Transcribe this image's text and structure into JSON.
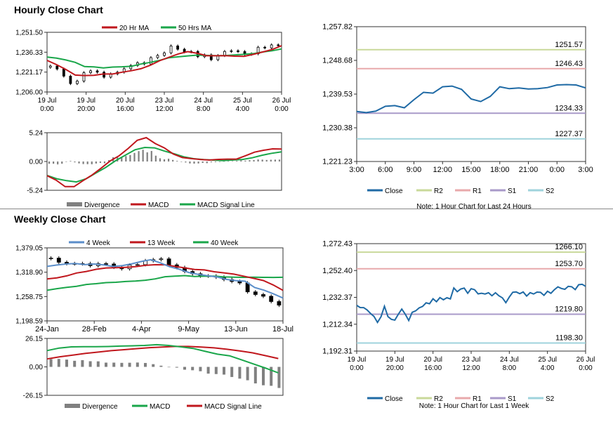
{
  "titles": {
    "hourly": "Hourly Close Chart",
    "weekly": "Weekly Close Chart"
  },
  "colors": {
    "ma_short": "#c0171d",
    "ma_long": "#1aa64a",
    "ma4": "#5b8ec9",
    "close": "#1f6aa5",
    "r2": "#c9d99a",
    "r1": "#e8a9ab",
    "s1": "#a99ac9",
    "s2": "#9fd3dc",
    "divergence": "#808080",
    "candle": "#000000"
  },
  "chart_data": [
    {
      "id": "hourly-price",
      "type": "candlestick",
      "legend": [
        "20 Hr MA",
        "50 Hrs MA"
      ],
      "yticks": [
        "1,251.50",
        "1,236.33",
        "1,221.17",
        "1,206.00"
      ],
      "ylim": [
        1206.0,
        1251.5
      ],
      "xticks": [
        [
          "19 Jul",
          "0:00"
        ],
        [
          "19 Jul",
          "20:00"
        ],
        [
          "20 Jul",
          "16:00"
        ],
        [
          "23 Jul",
          "12:00"
        ],
        [
          "24 Jul",
          "8:00"
        ],
        [
          "25 Jul",
          "4:00"
        ],
        [
          "26 Jul",
          "0:00"
        ]
      ],
      "close": [
        1225.8,
        1223.5,
        1218.1,
        1212.4,
        1214.3,
        1220.7,
        1222.1,
        1221.1,
        1217.3,
        1219.8,
        1221.1,
        1223.7,
        1226.2,
        1228.3,
        1227.3,
        1232.2,
        1233.9,
        1235.8,
        1241.1,
        1238.6,
        1236.6,
        1236.9,
        1232.9,
        1234.3,
        1230.6,
        1233.8,
        1236.9,
        1237.4,
        1236.8,
        1234.7,
        1235.1,
        1240.1,
        1239.6,
        1241.9,
        1241.7
      ],
      "ma20": [
        1230.1,
        1226.9,
        1223.2,
        1218.9,
        1218.5,
        1218.7,
        1219.7,
        1219.7,
        1221.1,
        1222.2,
        1223.7,
        1226.4,
        1229.8,
        1232.5,
        1235.0,
        1236.8,
        1235.5,
        1233.6,
        1233.6,
        1233.7,
        1233.3,
        1233.2,
        1234.7,
        1236.5,
        1238.4,
        1241.3
      ],
      "ma50": [
        1232.6,
        1231.8,
        1230.4,
        1228.6,
        1225.4,
        1225.1,
        1224.3,
        1225.0,
        1225.2,
        1225.6,
        1227.3,
        1228.6,
        1230.1,
        1232.1,
        1232.8,
        1233.5,
        1234.1,
        1233.9,
        1233.6,
        1233.8,
        1234.2,
        1234.7,
        1235.3,
        1236.5,
        1237.4,
        1238.8
      ]
    },
    {
      "id": "hourly-macd",
      "type": "line+bar",
      "legend": [
        "Divergence",
        "MACD",
        "MACD Signal Line"
      ],
      "yticks": [
        "5.24",
        "0.00",
        "-5.24"
      ],
      "ylim": [
        -5.24,
        5.24
      ],
      "macd": [
        -2.58,
        -3.39,
        -4.57,
        -4.57,
        -3.48,
        -2.46,
        -1.2,
        0.1,
        1.06,
        2.38,
        3.86,
        4.34,
        3.26,
        2.48,
        1.37,
        0.71,
        0.52,
        0.37,
        0.27,
        0.38,
        0.43,
        0.44,
        1.05,
        1.7,
        2.04,
        2.3,
        2.28
      ],
      "signal": [
        -2.53,
        -3.15,
        -3.49,
        -3.72,
        -3.15,
        -2.09,
        -1.08,
        0.13,
        1.14,
        2.14,
        2.56,
        2.48,
        1.91,
        1.41,
        0.86,
        0.51,
        0.34,
        0.25,
        0.16,
        0.27,
        0.37,
        0.68,
        1.14,
        1.49,
        1.76
      ],
      "divergence": [
        -0.42,
        -0.41,
        -0.53,
        -0.41,
        0.01,
        0.1,
        -0.15,
        -0.35,
        -0.47,
        -0.49,
        -0.5,
        -0.37,
        -0.25,
        -0.32,
        0.25,
        0.77,
        0.84,
        0.76,
        0.98,
        1.18,
        1.56,
        1.89,
        2.14,
        1.67,
        1.92,
        1.06,
        0.58,
        0.4,
        0.51,
        0.29,
        0.11,
        -0.02,
        -0.17,
        -0.36,
        -0.39,
        -0.36,
        -0.26,
        -0.31,
        -0.14,
        -0.11,
        -0.02,
        0.04,
        0.06,
        0.08,
        0.12,
        0.2,
        0.16,
        0.24,
        0.27,
        0.37,
        0.34,
        0.28,
        0.32,
        0.34,
        0.35
      ]
    },
    {
      "id": "hourly-levels",
      "type": "line",
      "legend": [
        "Close",
        "R2",
        "R1",
        "S1",
        "S2"
      ],
      "yticks": [
        "1,257.82",
        "1,248.68",
        "1,239.53",
        "1,230.38",
        "1,221.23"
      ],
      "ylim": [
        1221.23,
        1257.82
      ],
      "xticks": [
        "3:00",
        "6:00",
        "9:00",
        "12:00",
        "15:00",
        "18:00",
        "21:00",
        "0:00",
        "3:00"
      ],
      "close": [
        1234.8,
        1234.5,
        1234.9,
        1236.2,
        1236.4,
        1235.8,
        1238.0,
        1240.0,
        1239.8,
        1241.5,
        1241.7,
        1240.8,
        1238.2,
        1237.5,
        1238.9,
        1241.5,
        1241.0,
        1241.2,
        1240.9,
        1241.0,
        1241.3,
        1242.0,
        1242.1,
        1242.0,
        1241.2
      ],
      "levels": [
        {
          "name": "R2",
          "value": 1251.57,
          "label": "1251.57"
        },
        {
          "name": "R1",
          "value": 1246.43,
          "label": "1246.43"
        },
        {
          "name": "S1",
          "value": 1234.33,
          "label": "1234.33"
        },
        {
          "name": "S2",
          "value": 1227.37,
          "label": "1227.37"
        }
      ],
      "note": "Note: 1 Hour Chart for Last 24 Hours"
    },
    {
      "id": "weekly-price",
      "type": "candlestick",
      "legend": [
        "4 Week",
        "13 Week",
        "40 Week"
      ],
      "yticks": [
        "1,379.05",
        "1,318.90",
        "1,258.75",
        "1,198.59"
      ],
      "ylim": [
        1198.59,
        1379.05
      ],
      "xticks": [
        "24-Jan",
        "28-Feb",
        "4-Apr",
        "9-May",
        "13-Jun",
        "18-Jul"
      ],
      "close": [
        1353.7,
        1343.5,
        1340.1,
        1339.7,
        1340.3,
        1334.9,
        1340.1,
        1339.2,
        1331.3,
        1327.4,
        1336.4,
        1337.7,
        1347.3,
        1349.9,
        1351.9,
        1337.1,
        1330.4,
        1320.7,
        1315.1,
        1309.6,
        1309.6,
        1306.6,
        1300.9,
        1296.0,
        1292.3,
        1270.3,
        1263.8,
        1259.5,
        1246.4,
        1237.5
      ],
      "ma4": [
        1333.3,
        1336.5,
        1339.1,
        1340.4,
        1337.6,
        1339.1,
        1336.8,
        1333.0,
        1335.4,
        1339.8,
        1345.4,
        1349.8,
        1342.1,
        1332.4,
        1326.3,
        1318.4,
        1313.7,
        1310.4,
        1307.2,
        1301.1,
        1298.2,
        1296.6,
        1281.0,
        1274.4,
        1265.3,
        1255.2
      ],
      "ma13": [
        1302.3,
        1305.0,
        1309.8,
        1316.9,
        1320.8,
        1326.1,
        1329.4,
        1330.1,
        1331.0,
        1332.6,
        1335.9,
        1337.4,
        1337.3,
        1333.2,
        1329.6,
        1325.8,
        1324.5,
        1320.0,
        1317.2,
        1314.1,
        1309.1,
        1303.8,
        1298.3,
        1287.4,
        1274.1
      ],
      "ma40": [
        1274.2,
        1278.2,
        1281.5,
        1284.2,
        1288.7,
        1290.6,
        1293.1,
        1294.0,
        1296.0,
        1297.0,
        1299.0,
        1302.4,
        1307.8,
        1309.2,
        1310.5,
        1308.5,
        1308.9,
        1309.2,
        1307.2,
        1306.7,
        1306.2,
        1306.7,
        1306.2,
        1306.0,
        1306.4
      ]
    },
    {
      "id": "weekly-macd",
      "type": "line+bar",
      "legend": [
        "Divergence",
        "MACD",
        "MACD Signal Line"
      ],
      "yticks": [
        "26.15",
        "0.00",
        "-26.15"
      ],
      "ylim": [
        -26.15,
        26.15
      ],
      "macd": [
        15.0,
        17.3,
        18.4,
        18.6,
        18.5,
        18.7,
        19.1,
        19.4,
        19.7,
        20.4,
        19.7,
        18.4,
        17.0,
        14.3,
        11.7,
        10.2,
        6.4,
        2.5,
        -1.3,
        -5.5
      ],
      "signal": [
        7.3,
        9.3,
        10.8,
        12.4,
        13.6,
        14.9,
        15.8,
        16.8,
        17.7,
        18.3,
        18.8,
        18.8,
        18.2,
        17.5,
        16.2,
        14.7,
        12.9,
        10.3,
        7.7
      ],
      "divergence": [
        7.2,
        7.3,
        6.7,
        5.6,
        6.2,
        5.2,
        5.1,
        3.9,
        3.9,
        3.7,
        3.8,
        4.0,
        3.6,
        2.5,
        1.1,
        -0.3,
        -0.7,
        -2.6,
        -3.1,
        -4.0,
        -6.2,
        -6.6,
        -7.1,
        -9.3,
        -10.8,
        -12.3,
        -15.2,
        -16.9,
        -17.4,
        -19.4
      ]
    },
    {
      "id": "weekly-levels",
      "type": "line",
      "legend": [
        "Close",
        "R2",
        "R1",
        "S1",
        "S2"
      ],
      "yticks": [
        "1,272.43",
        "1,252.40",
        "1,232.37",
        "1,212.34",
        "1,192.31"
      ],
      "ylim": [
        1192.31,
        1272.43
      ],
      "xticks": [
        [
          "19 Jul",
          "0:00"
        ],
        [
          "19 Jul",
          "20:00"
        ],
        [
          "20 Jul",
          "16:00"
        ],
        [
          "23 Jul",
          "12:00"
        ],
        [
          "24 Jul",
          "8:00"
        ],
        [
          "25 Jul",
          "4:00"
        ],
        [
          "26 Jul",
          "0:00"
        ]
      ],
      "close": [
        1226.4,
        1224.8,
        1224.7,
        1223.0,
        1220.3,
        1218.1,
        1213.7,
        1217.9,
        1225.7,
        1218.0,
        1216.0,
        1215.4,
        1219.8,
        1223.6,
        1219.8,
        1215.1,
        1221.2,
        1222.3,
        1224.5,
        1225.6,
        1228.3,
        1227.6,
        1231.3,
        1229.1,
        1232.2,
        1230.6,
        1232.1,
        1231.2,
        1239.4,
        1236.6,
        1238.6,
        1239.3,
        1235.4,
        1238.8,
        1238.1,
        1235.0,
        1235.4,
        1234.9,
        1235.8,
        1233.6,
        1235.8,
        1233.6,
        1232.0,
        1228.4,
        1232.6,
        1236.2,
        1236.4,
        1235.1,
        1236.4,
        1233.3,
        1235.9,
        1234.9,
        1236.3,
        1236.1,
        1233.9,
        1236.9,
        1235.4,
        1238.1,
        1240.2,
        1239.0,
        1238.4,
        1240.6,
        1240.3,
        1238.2,
        1241.8,
        1242.1,
        1240.6
      ],
      "levels": [
        {
          "name": "R2",
          "value": 1266.1,
          "label": "1266.10"
        },
        {
          "name": "R1",
          "value": 1253.7,
          "label": "1253.70"
        },
        {
          "name": "S1",
          "value": 1219.8,
          "label": "1219.80"
        },
        {
          "name": "S2",
          "value": 1198.3,
          "label": "1198.30"
        }
      ],
      "note": "Note: 1 Hour Chart for Last 1 Week"
    }
  ]
}
